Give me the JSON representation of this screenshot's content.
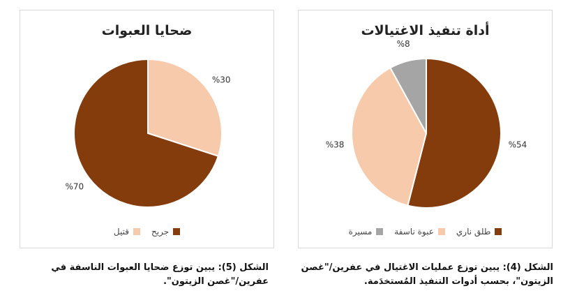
{
  "chart_data": [
    {
      "type": "pie",
      "title": "ضحايا العبوات",
      "categories": [
        "قتيل",
        "جريح"
      ],
      "values": [
        30,
        70
      ],
      "labels": [
        "%30",
        "%70"
      ],
      "colors": [
        "#f7caac",
        "#843c0c"
      ]
    },
    {
      "type": "pie",
      "title": "أداة تنفيذ الاغتيالات",
      "categories": [
        "طلق ناري",
        "عبوة ناسفة",
        "مسيرة"
      ],
      "values": [
        54,
        38,
        8
      ],
      "labels": [
        "%54",
        "%38",
        "%8"
      ],
      "colors": [
        "#843c0c",
        "#f7caac",
        "#a5a5a5"
      ]
    }
  ],
  "captions": {
    "left": "الشكل (5): يبين توزع ضحايا العبوات الناسفة في عفرين/\"غصن الزيتون\".",
    "right": "الشكل (4): يبين توزع عمليات الاغتيال في عفرين/\"غصن الزيتون\"، بحسب أدوات التنفيذ المُستخدَمة."
  }
}
